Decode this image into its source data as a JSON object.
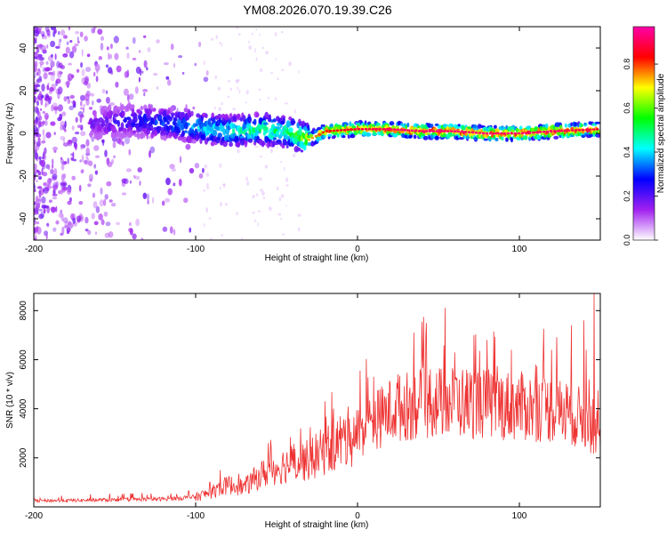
{
  "title": "YM08.2026.070.19.39.C26",
  "chart_data": [
    {
      "type": "heatmap",
      "title": "YM08.2026.070.19.39.C26",
      "xlabel": "Height of straight line (km)",
      "ylabel": "Frequency (Hz)",
      "xlim": [
        -200,
        150
      ],
      "ylim": [
        -50,
        50
      ],
      "xticks": [
        -200,
        -100,
        0,
        100
      ],
      "yticks": [
        -40,
        -20,
        0,
        20,
        40
      ],
      "colorbar": {
        "label": "Normalized spectral amplitude",
        "range": [
          0.0,
          0.97
        ],
        "ticks": [
          0.0,
          0.2,
          0.4,
          0.6,
          0.8
        ],
        "tick_labels": [
          "0.0",
          "0.2",
          "0.4",
          "0.6",
          "0.8"
        ],
        "colors": [
          "#ffffff",
          "#a020f0",
          "#0000ff",
          "#00ffff",
          "#00ff00",
          "#ffff00",
          "#ff0000",
          "#ff00aa"
        ]
      },
      "ridge": {
        "description": "Peak frequency trace (Hz) vs height (km)",
        "x": [
          -160,
          -140,
          -120,
          -100,
          -80,
          -60,
          -40,
          -30,
          -20,
          0,
          20,
          40,
          60,
          80,
          100,
          120,
          150
        ],
        "y": [
          5,
          6,
          5,
          3,
          1,
          2,
          0,
          -3,
          1,
          2,
          2,
          1,
          1,
          0,
          0,
          1,
          2
        ],
        "peak_amplitude": [
          0.2,
          0.3,
          0.35,
          0.45,
          0.5,
          0.55,
          0.6,
          0.75,
          0.85,
          0.9,
          0.95,
          0.95,
          0.95,
          0.95,
          0.95,
          0.95,
          0.9
        ]
      }
    },
    {
      "type": "line",
      "xlabel": "Height of straight line (km)",
      "ylabel": "SNR (10 * v/v)",
      "xlim": [
        -200,
        150
      ],
      "ylim": [
        0,
        8700
      ],
      "xticks": [
        -200,
        -100,
        0,
        100
      ],
      "yticks": [
        2000,
        4000,
        6000,
        8000
      ],
      "color": "#ee3333",
      "series": [
        {
          "name": "SNR",
          "x": [
            -200,
            -180,
            -160,
            -140,
            -120,
            -100,
            -90,
            -80,
            -70,
            -60,
            -50,
            -40,
            -30,
            -20,
            -10,
            0,
            10,
            20,
            30,
            40,
            60,
            80,
            100,
            120,
            140,
            150
          ],
          "y": [
            250,
            260,
            280,
            300,
            320,
            400,
            600,
            900,
            800,
            1300,
            1600,
            1800,
            1900,
            2300,
            2700,
            3000,
            3500,
            3900,
            4100,
            4200,
            4300,
            4200,
            4100,
            4000,
            3600,
            3000
          ]
        }
      ],
      "peaks": {
        "x": [
          -85,
          -55,
          -35,
          -20,
          -5,
          10,
          25,
          35,
          45,
          60,
          72,
          80,
          95,
          110,
          120,
          132,
          140,
          143,
          146
        ],
        "y": [
          1500,
          2600,
          3200,
          4300,
          3600,
          5300,
          5400,
          7100,
          5600,
          6300,
          7000,
          6800,
          6400,
          5800,
          6400,
          7400,
          7600,
          5200,
          8700
        ]
      }
    }
  ]
}
